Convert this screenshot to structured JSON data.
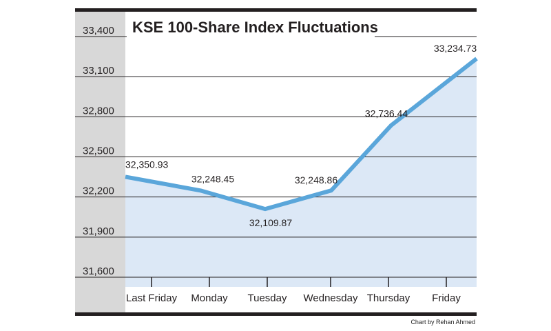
{
  "chart_data": {
    "type": "area",
    "title": "KSE 100-Share Index Fluctuations",
    "categories": [
      "Last Friday",
      "Monday",
      "Tuesday",
      "Wednesday",
      "Thursday",
      "Friday"
    ],
    "values": [
      32350.93,
      32248.45,
      32109.87,
      32248.86,
      32736.44,
      33234.73
    ],
    "value_labels": [
      "32,350.93",
      "32,248.45",
      "32,109.87",
      "32,248.86",
      "32,736.44",
      "33,234.73"
    ],
    "yticks": [
      31600,
      31900,
      32200,
      32500,
      32800,
      33100,
      33400
    ],
    "ytick_labels": [
      "31,600",
      "31,900",
      "32,200",
      "32,500",
      "32,800",
      "33,100",
      "33,400"
    ],
    "ylim": [
      31500,
      33480
    ],
    "grid": true,
    "colors": {
      "line": "#5aa6da",
      "fill": "#dce8f6",
      "axis_panel": "#d8d8d8",
      "frame": "#231f20"
    }
  },
  "credit": "Chart by Rehan Ahmed"
}
